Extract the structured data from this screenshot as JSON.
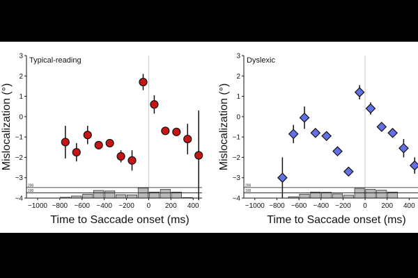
{
  "chart_data": [
    {
      "type": "scatter",
      "title": "Typical-reading",
      "xlabel": "Time to Saccade onset (ms)",
      "ylabel": "Mislocalization (°)",
      "xlim": [
        -1100,
        480
      ],
      "ylim": [
        -4,
        3
      ],
      "xticks": [
        "−1000",
        "−800",
        "−600",
        "−400",
        "−200",
        "0",
        "200",
        "400"
      ],
      "yticks": [
        "−4",
        "−3",
        "−2",
        "−1",
        "0",
        "1",
        "2",
        "3"
      ],
      "marker": "circle",
      "color": "#c81414",
      "points": [
        {
          "x": -750,
          "y": -1.25,
          "err": 0.8
        },
        {
          "x": -650,
          "y": -1.75,
          "err": 0.45
        },
        {
          "x": -550,
          "y": -0.9,
          "err": 0.45
        },
        {
          "x": -450,
          "y": -1.4,
          "err": 0.2
        },
        {
          "x": -350,
          "y": -1.3,
          "err": 0.2
        },
        {
          "x": -250,
          "y": -1.95,
          "err": 0.3
        },
        {
          "x": -150,
          "y": -2.15,
          "err": 0.5
        },
        {
          "x": -50,
          "y": 1.7,
          "err": 0.4
        },
        {
          "x": 50,
          "y": 0.6,
          "err": 0.45
        },
        {
          "x": 150,
          "y": -0.7,
          "err": 0.15
        },
        {
          "x": 250,
          "y": -0.75,
          "err": 0.15
        },
        {
          "x": 350,
          "y": -1.1,
          "err": 0.75
        },
        {
          "x": 450,
          "y": -1.9,
          "err": 2.2
        }
      ],
      "histogram": {
        "ref_labels": [
          "200",
          "100"
        ],
        "ref_values": [
          200,
          100
        ],
        "bins": [
          {
            "x": -750,
            "count": 15
          },
          {
            "x": -650,
            "count": 40
          },
          {
            "x": -550,
            "count": 75
          },
          {
            "x": -450,
            "count": 145
          },
          {
            "x": -350,
            "count": 135
          },
          {
            "x": -250,
            "count": 65
          },
          {
            "x": -150,
            "count": 60
          },
          {
            "x": -50,
            "count": 190
          },
          {
            "x": 50,
            "count": 115
          },
          {
            "x": 150,
            "count": 165
          },
          {
            "x": 250,
            "count": 115
          },
          {
            "x": 350,
            "count": 10
          }
        ]
      }
    },
    {
      "type": "scatter",
      "title": "Dyslexic",
      "xlabel": "Time to Saccade onset (ms)",
      "ylabel": "Mislocalization (°)",
      "xlim": [
        -1100,
        480
      ],
      "ylim": [
        -4,
        3
      ],
      "xticks": [
        "−1000",
        "−800",
        "−600",
        "−400",
        "−200",
        "0",
        "200",
        "400"
      ],
      "yticks": [
        "−4",
        "−3",
        "−2",
        "−1",
        "0",
        "1",
        "2",
        "3"
      ],
      "marker": "diamond",
      "color": "#6470e6",
      "points": [
        {
          "x": -750,
          "y": -3.0,
          "err": 1.0
        },
        {
          "x": -650,
          "y": -0.85,
          "err": 0.45
        },
        {
          "x": -550,
          "y": -0.05,
          "err": 0.55
        },
        {
          "x": -450,
          "y": -0.8,
          "err": 0.2
        },
        {
          "x": -350,
          "y": -0.95,
          "err": 0.2
        },
        {
          "x": -250,
          "y": -1.7,
          "err": 0.2
        },
        {
          "x": -150,
          "y": -2.7,
          "err": 0.2
        },
        {
          "x": -50,
          "y": 1.2,
          "err": 0.35
        },
        {
          "x": 50,
          "y": 0.4,
          "err": 0.3
        },
        {
          "x": 150,
          "y": -0.5,
          "err": 0.1
        },
        {
          "x": 250,
          "y": -0.8,
          "err": 0.15
        },
        {
          "x": 350,
          "y": -1.55,
          "err": 0.45
        },
        {
          "x": 450,
          "y": -2.4,
          "err": 0.4
        }
      ],
      "histogram": {
        "ref_labels": [
          "200",
          "100"
        ],
        "ref_values": [
          200,
          100
        ],
        "bins": [
          {
            "x": -650,
            "count": 25
          },
          {
            "x": -550,
            "count": 75
          },
          {
            "x": -450,
            "count": 115
          },
          {
            "x": -350,
            "count": 110
          },
          {
            "x": -250,
            "count": 80
          },
          {
            "x": -150,
            "count": 55
          },
          {
            "x": -50,
            "count": 185
          },
          {
            "x": 50,
            "count": 165
          },
          {
            "x": 150,
            "count": 150
          },
          {
            "x": 250,
            "count": 115
          }
        ]
      }
    }
  ]
}
